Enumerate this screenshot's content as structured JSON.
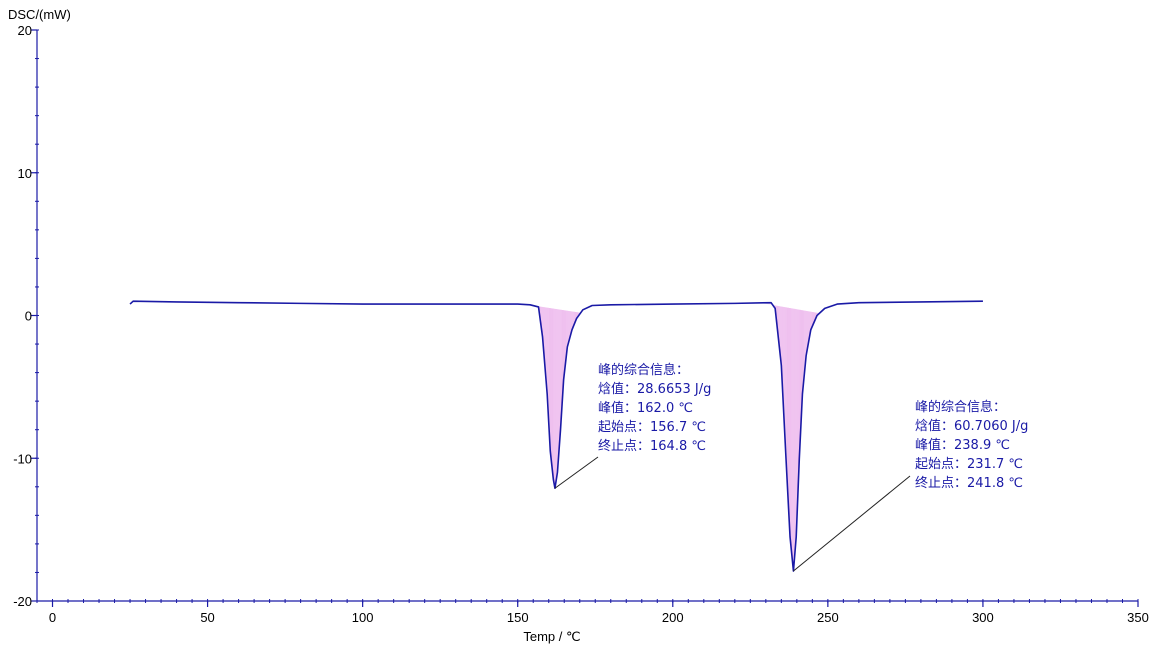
{
  "chart_data": {
    "type": "line",
    "title": "",
    "ylabel": "DSC/(mW)",
    "xlabel": "Temp / ℃",
    "xlim": [
      -5,
      350
    ],
    "ylim": [
      -20,
      20
    ],
    "x_ticks": [
      0,
      50,
      100,
      150,
      200,
      250,
      300,
      350
    ],
    "y_ticks": [
      20,
      10,
      0,
      -10,
      -20
    ],
    "grid": false,
    "series": [
      {
        "color": "#1a1aa6",
        "x": [
          25,
          26,
          40,
          60,
          80,
          100,
          120,
          140,
          150,
          154,
          156.7,
          158,
          159.5,
          160.5,
          161.5,
          162.0,
          162.8,
          163.8,
          164.8,
          166,
          167.5,
          169,
          171,
          174,
          180,
          200,
          220,
          231.7,
          233,
          235,
          236.5,
          237.8,
          238.9,
          239.8,
          240.8,
          241.8,
          243,
          244.5,
          246.5,
          249,
          253,
          260,
          280,
          300
        ],
        "y": [
          0.8,
          1.0,
          0.95,
          0.9,
          0.85,
          0.8,
          0.8,
          0.8,
          0.8,
          0.75,
          0.6,
          -1.5,
          -5.5,
          -9.5,
          -11.5,
          -12.1,
          -11.0,
          -8.0,
          -4.5,
          -2.2,
          -1.0,
          -0.2,
          0.4,
          0.7,
          0.75,
          0.8,
          0.85,
          0.9,
          0.5,
          -3.5,
          -10.0,
          -15.5,
          -17.9,
          -15.5,
          -10.0,
          -5.5,
          -2.8,
          -1.0,
          0.0,
          0.5,
          0.8,
          0.9,
          0.95,
          1.0
        ]
      }
    ],
    "peaks": [
      {
        "onset": 156.7,
        "peak": 162.0,
        "endset": 164.8,
        "peak_y": -12.1,
        "fill_color": "#e8a6e8",
        "lines": [
          "峰的综合信息：",
          "焓值：28.6653 J/g",
          "峰值：162.0 ℃",
          "起始点：156.7 ℃",
          "终止点：164.8 ℃"
        ]
      },
      {
        "onset": 231.7,
        "peak": 238.9,
        "endset": 241.8,
        "peak_y": -17.9,
        "fill_color": "#e8a6e8",
        "lines": [
          "峰的综合信息：",
          "焓值：60.7060 J/g",
          "峰值：238.9 ℃",
          "起始点：231.7 ℃",
          "终止点：241.8 ℃"
        ]
      }
    ],
    "annotation_color": "#1a1aa6",
    "axis_color": "#1a1aa6"
  }
}
